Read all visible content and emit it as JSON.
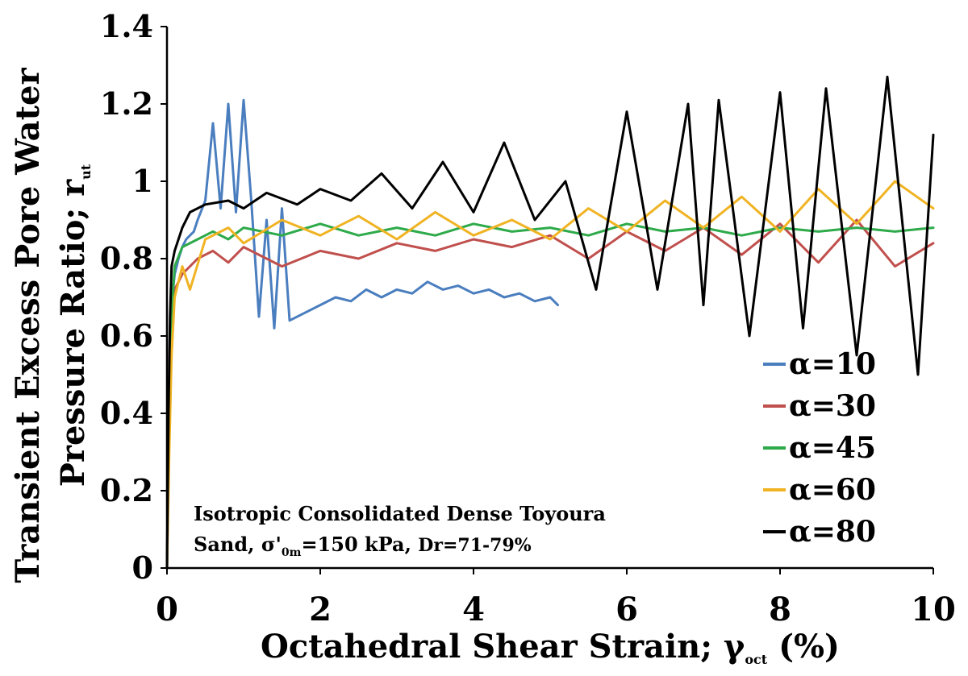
{
  "chart_data": {
    "type": "line",
    "xlabel_main": "Octahedral Shear Strain; γ",
    "xlabel_sub": "oct",
    "xlabel_unit": " (%)",
    "ylabel_line1": "Transient Excess Pore Water",
    "ylabel_line2_main": "Pressure Ratio; r",
    "ylabel_line2_sub": "ut",
    "xlim": [
      0,
      10
    ],
    "ylim": [
      0,
      1.4
    ],
    "x_ticks": [
      "0",
      "2",
      "4",
      "6",
      "8",
      "10"
    ],
    "y_ticks": [
      "0",
      "0.2",
      "0.4",
      "0.6",
      "0.8",
      "1",
      "1.2",
      "1.4"
    ],
    "annotation_line1": "Isotropic Consolidated  Dense Toyoura",
    "annotation_line2_a": "Sand, σ'",
    "annotation_line2_sub": "0m",
    "annotation_line2_b": "=150 kPa, ",
    "annotation_line2_c": "Dr=71-79%",
    "legend_position": "lower-right",
    "series": [
      {
        "name": "α=10",
        "color": "#4a7ebf",
        "x": [
          0,
          0.02,
          0.04,
          0.06,
          0.1,
          0.15,
          0.2,
          0.25,
          0.3,
          0.35,
          0.4,
          0.5,
          0.6,
          0.7,
          0.8,
          0.9,
          1.0,
          1.1,
          1.2,
          1.3,
          1.4,
          1.5,
          1.6,
          1.8,
          2.0,
          2.2,
          2.4,
          2.6,
          2.8,
          3.0,
          3.2,
          3.4,
          3.6,
          3.8,
          4.0,
          4.2,
          4.4,
          4.6,
          4.8,
          5.0,
          5.1
        ],
        "y": [
          0,
          0.35,
          0.55,
          0.68,
          0.76,
          0.8,
          0.83,
          0.85,
          0.86,
          0.87,
          0.9,
          0.95,
          1.15,
          0.93,
          1.2,
          0.92,
          1.21,
          0.95,
          0.65,
          0.9,
          0.62,
          0.93,
          0.64,
          0.66,
          0.68,
          0.7,
          0.69,
          0.72,
          0.7,
          0.72,
          0.71,
          0.74,
          0.72,
          0.73,
          0.71,
          0.72,
          0.7,
          0.71,
          0.69,
          0.7,
          0.68
        ]
      },
      {
        "name": "α=30",
        "color": "#c0504d",
        "x": [
          0,
          0.03,
          0.06,
          0.1,
          0.2,
          0.4,
          0.6,
          0.8,
          1.0,
          1.5,
          2.0,
          2.5,
          3.0,
          3.5,
          4.0,
          4.5,
          5.0,
          5.5,
          6.0,
          6.5,
          7.0,
          7.5,
          8.0,
          8.5,
          9.0,
          9.5,
          10.0
        ],
        "y": [
          0,
          0.4,
          0.6,
          0.72,
          0.76,
          0.8,
          0.82,
          0.79,
          0.83,
          0.78,
          0.82,
          0.8,
          0.84,
          0.82,
          0.85,
          0.83,
          0.86,
          0.8,
          0.87,
          0.82,
          0.88,
          0.81,
          0.89,
          0.79,
          0.9,
          0.78,
          0.84
        ]
      },
      {
        "name": "α=45",
        "color": "#2eaa4a",
        "x": [
          0,
          0.03,
          0.06,
          0.1,
          0.2,
          0.4,
          0.6,
          0.8,
          1.0,
          1.5,
          2.0,
          2.5,
          3.0,
          3.5,
          4.0,
          4.5,
          5.0,
          5.5,
          6.0,
          6.5,
          7.0,
          7.5,
          8.0,
          8.5,
          9.0,
          9.5,
          10.0
        ],
        "y": [
          0,
          0.45,
          0.65,
          0.78,
          0.83,
          0.85,
          0.87,
          0.85,
          0.88,
          0.86,
          0.89,
          0.86,
          0.88,
          0.86,
          0.89,
          0.87,
          0.88,
          0.86,
          0.89,
          0.87,
          0.88,
          0.86,
          0.88,
          0.87,
          0.88,
          0.87,
          0.88
        ]
      },
      {
        "name": "α=60",
        "color": "#f0b323",
        "x": [
          0,
          0.03,
          0.06,
          0.1,
          0.2,
          0.3,
          0.5,
          0.8,
          1.0,
          1.5,
          2.0,
          2.5,
          3.0,
          3.5,
          4.0,
          4.5,
          5.0,
          5.5,
          6.0,
          6.5,
          7.0,
          7.5,
          8.0,
          8.5,
          9.0,
          9.5,
          10.0
        ],
        "y": [
          0,
          0.3,
          0.55,
          0.7,
          0.78,
          0.72,
          0.85,
          0.88,
          0.84,
          0.9,
          0.86,
          0.91,
          0.85,
          0.92,
          0.86,
          0.9,
          0.85,
          0.93,
          0.87,
          0.95,
          0.88,
          0.96,
          0.87,
          0.98,
          0.89,
          1.0,
          0.93
        ]
      },
      {
        "name": "α=80",
        "color": "#000000",
        "x": [
          0,
          0.02,
          0.04,
          0.06,
          0.1,
          0.2,
          0.3,
          0.5,
          0.8,
          1.0,
          1.3,
          1.7,
          2.0,
          2.4,
          2.8,
          3.2,
          3.6,
          4.0,
          4.4,
          4.8,
          5.2,
          5.6,
          6.0,
          6.4,
          6.8,
          7.0,
          7.2,
          7.6,
          8.0,
          8.3,
          8.6,
          9.0,
          9.4,
          9.8,
          10.0
        ],
        "y": [
          0,
          0.4,
          0.65,
          0.78,
          0.82,
          0.88,
          0.92,
          0.94,
          0.95,
          0.93,
          0.97,
          0.94,
          0.98,
          0.95,
          1.02,
          0.93,
          1.05,
          0.92,
          1.1,
          0.9,
          1.0,
          0.72,
          1.18,
          0.72,
          1.2,
          0.68,
          1.21,
          0.6,
          1.23,
          0.62,
          1.24,
          0.55,
          1.27,
          0.5,
          1.12
        ]
      }
    ]
  }
}
